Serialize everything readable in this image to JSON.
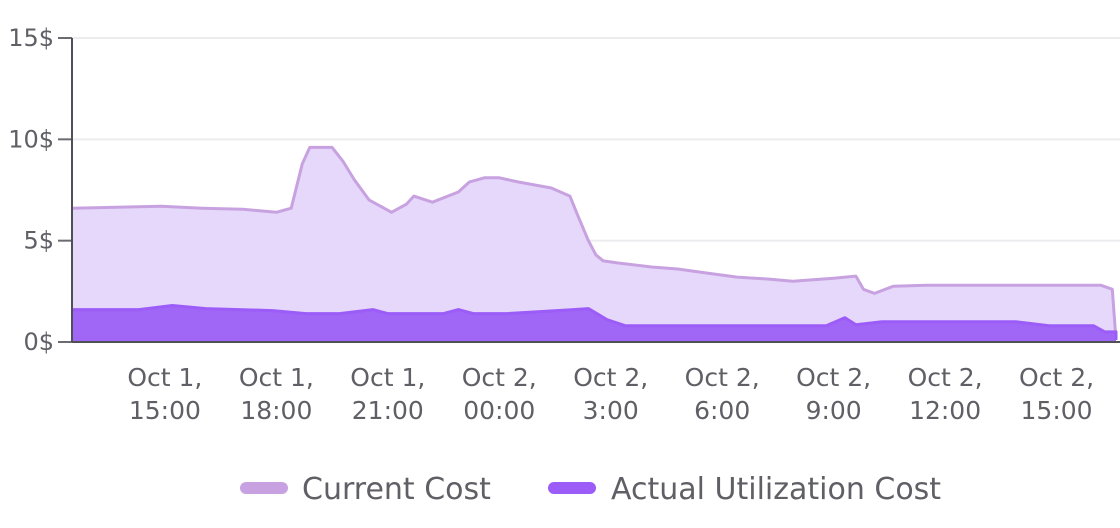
{
  "chart_data": {
    "type": "area",
    "title": "",
    "xlabel": "",
    "ylabel": "",
    "y_unit_suffix": "$",
    "ylim": [
      0,
      15
    ],
    "y_ticks": [
      {
        "value": 0,
        "label": "0$"
      },
      {
        "value": 5,
        "label": "5$"
      },
      {
        "value": 10,
        "label": "10$"
      },
      {
        "value": 15,
        "label": "15$"
      }
    ],
    "xlim": [
      12.5,
      40.6
    ],
    "x_ticks": [
      {
        "value": 15,
        "line1": "Oct 1,",
        "line2": "15:00"
      },
      {
        "value": 18,
        "line1": "Oct 1,",
        "line2": "18:00"
      },
      {
        "value": 21,
        "line1": "Oct 1,",
        "line2": "21:00"
      },
      {
        "value": 24,
        "line1": "Oct 2,",
        "line2": "00:00"
      },
      {
        "value": 27,
        "line1": "Oct 2,",
        "line2": "3:00"
      },
      {
        "value": 30,
        "line1": "Oct 2,",
        "line2": "6:00"
      },
      {
        "value": 33,
        "line1": "Oct 2,",
        "line2": "9:00"
      },
      {
        "value": 36,
        "line1": "Oct 2,",
        "line2": "12:00"
      },
      {
        "value": 39,
        "line1": "Oct 2,",
        "line2": "15:00"
      }
    ],
    "grid": true,
    "legend_position": "bottom",
    "series": [
      {
        "name": "Current Cost",
        "color": "#c8a2e0",
        "fill": "#e6d8fa",
        "points": [
          [
            12.5,
            6.6
          ],
          [
            13.7,
            6.65
          ],
          [
            14.9,
            6.7
          ],
          [
            16,
            6.6
          ],
          [
            17.1,
            6.55
          ],
          [
            17.7,
            6.45
          ],
          [
            18.0,
            6.4
          ],
          [
            18.4,
            6.6
          ],
          [
            18.7,
            8.8
          ],
          [
            18.9,
            9.6
          ],
          [
            19.5,
            9.6
          ],
          [
            19.8,
            8.9
          ],
          [
            20.1,
            8.0
          ],
          [
            20.5,
            7.0
          ],
          [
            20.9,
            6.6
          ],
          [
            21.1,
            6.4
          ],
          [
            21.5,
            6.8
          ],
          [
            21.7,
            7.2
          ],
          [
            22.2,
            6.9
          ],
          [
            22.9,
            7.4
          ],
          [
            23.2,
            7.9
          ],
          [
            23.6,
            8.1
          ],
          [
            24.0,
            8.1
          ],
          [
            24.5,
            7.9
          ],
          [
            25.4,
            7.6
          ],
          [
            25.9,
            7.2
          ],
          [
            26.1,
            6.3
          ],
          [
            26.4,
            5.0
          ],
          [
            26.6,
            4.3
          ],
          [
            26.8,
            4.0
          ],
          [
            27.2,
            3.9
          ],
          [
            28.1,
            3.7
          ],
          [
            28.8,
            3.6
          ],
          [
            29.6,
            3.4
          ],
          [
            30.4,
            3.2
          ],
          [
            31.3,
            3.1
          ],
          [
            31.9,
            3.0
          ],
          [
            33.0,
            3.15
          ],
          [
            33.6,
            3.25
          ],
          [
            33.8,
            2.6
          ],
          [
            34.1,
            2.4
          ],
          [
            34.6,
            2.75
          ],
          [
            35.5,
            2.8
          ],
          [
            36.4,
            2.8
          ],
          [
            37.3,
            2.8
          ],
          [
            38.2,
            2.8
          ],
          [
            39.1,
            2.8
          ],
          [
            40.2,
            2.8
          ],
          [
            40.5,
            2.6
          ],
          [
            40.6,
            0.1
          ]
        ]
      },
      {
        "name": "Actual Utilization Cost",
        "color": "#9c5cf7",
        "fill": "#a066f5",
        "points": [
          [
            12.5,
            1.6
          ],
          [
            13.4,
            1.6
          ],
          [
            14.3,
            1.6
          ],
          [
            15.2,
            1.8
          ],
          [
            16.1,
            1.65
          ],
          [
            17.0,
            1.6
          ],
          [
            17.9,
            1.55
          ],
          [
            18.8,
            1.4
          ],
          [
            19.7,
            1.4
          ],
          [
            20.6,
            1.6
          ],
          [
            21.0,
            1.4
          ],
          [
            21.7,
            1.4
          ],
          [
            22.5,
            1.4
          ],
          [
            22.9,
            1.6
          ],
          [
            23.3,
            1.4
          ],
          [
            24.2,
            1.4
          ],
          [
            25.1,
            1.5
          ],
          [
            26.0,
            1.6
          ],
          [
            26.4,
            1.65
          ],
          [
            26.9,
            1.1
          ],
          [
            27.4,
            0.8
          ],
          [
            28.3,
            0.8
          ],
          [
            29.2,
            0.8
          ],
          [
            30.1,
            0.8
          ],
          [
            31.0,
            0.8
          ],
          [
            31.9,
            0.8
          ],
          [
            32.8,
            0.8
          ],
          [
            33.3,
            1.2
          ],
          [
            33.6,
            0.85
          ],
          [
            34.3,
            1.0
          ],
          [
            35.2,
            1.0
          ],
          [
            36.1,
            1.0
          ],
          [
            37.0,
            1.0
          ],
          [
            37.9,
            1.0
          ],
          [
            38.8,
            0.8
          ],
          [
            39.7,
            0.8
          ],
          [
            40.0,
            0.8
          ],
          [
            40.3,
            0.5
          ],
          [
            40.6,
            0.5
          ],
          [
            40.6,
            0.1
          ]
        ]
      }
    ]
  }
}
